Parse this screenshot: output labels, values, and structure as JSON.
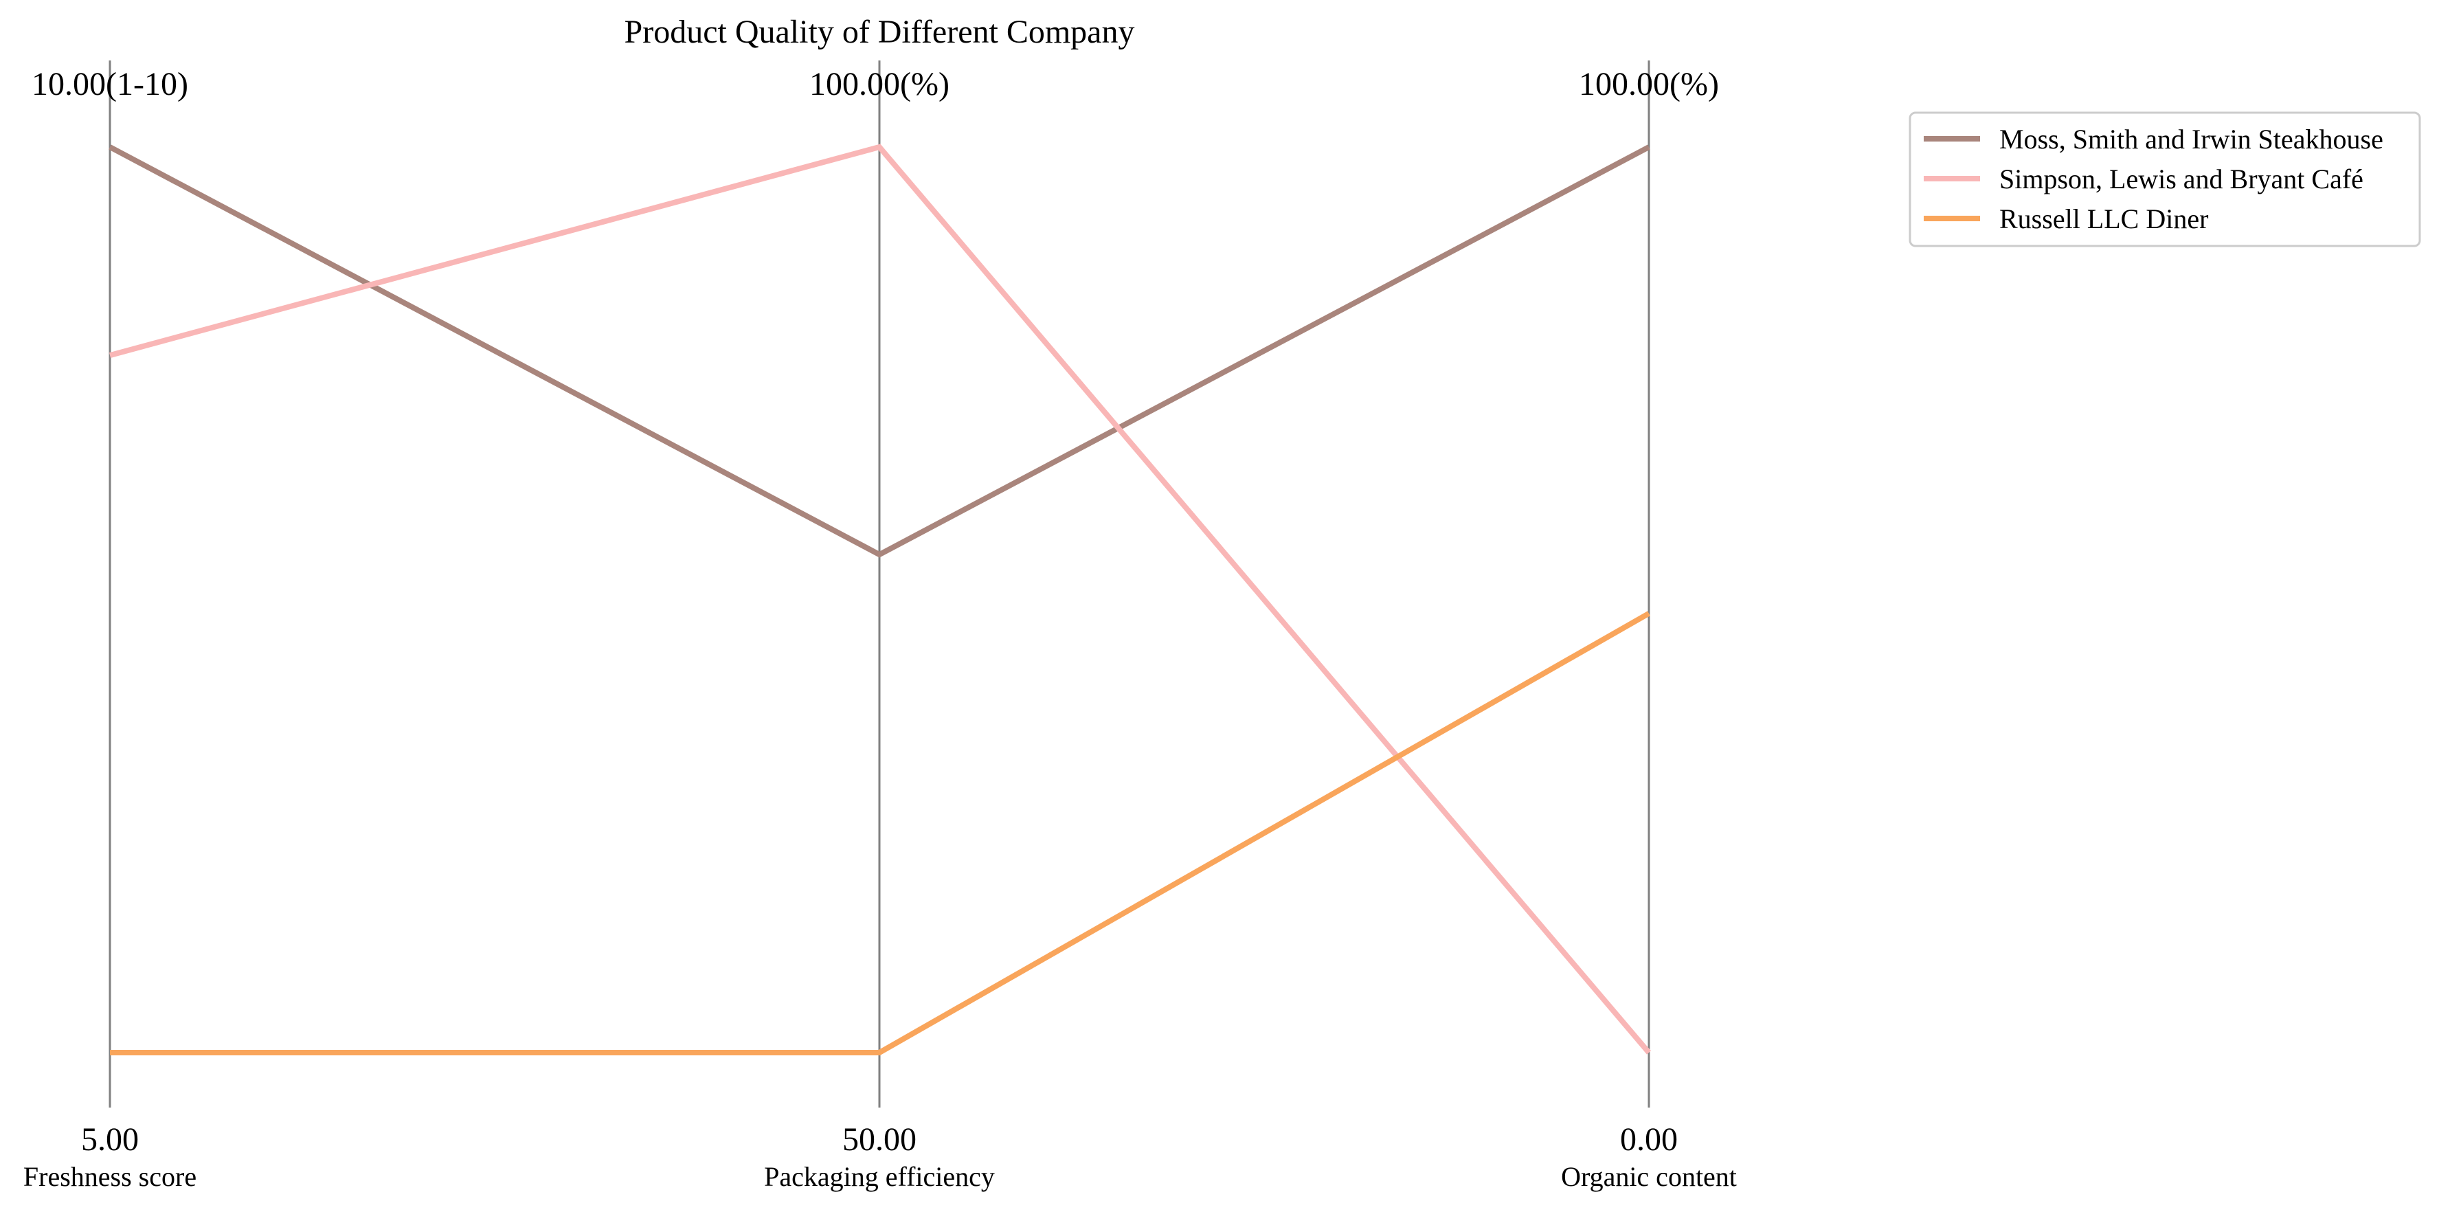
{
  "chart_data": {
    "type": "parallel-coordinates",
    "title": "Product Quality of Different Company",
    "axes": [
      {
        "name": "Freshness score",
        "min": 5.0,
        "max": 10.0,
        "min_label": "5.00",
        "max_label": "10.00(1-10)"
      },
      {
        "name": "Packaging efficiency",
        "min": 50.0,
        "max": 100.0,
        "min_label": "50.00",
        "max_label": "100.00(%)"
      },
      {
        "name": "Organic content",
        "min": 0.0,
        "max": 100.0,
        "min_label": "0.00",
        "max_label": "100.00(%)"
      }
    ],
    "series": [
      {
        "name": "Moss, Smith and Irwin  Steakhouse",
        "color": "#a9857c",
        "values": [
          10.0,
          77.5,
          100.0
        ]
      },
      {
        "name": "Simpson, Lewis and Bryant  Café",
        "color": "#f9b6b6",
        "values": [
          8.85,
          100.0,
          0.0
        ]
      },
      {
        "name": "Russell LLC  Diner",
        "color": "#f9a55b",
        "values": [
          5.0,
          50.0,
          48.5
        ]
      }
    ],
    "legend_position": "top-right",
    "axis_color": "#808080",
    "grid": false
  }
}
